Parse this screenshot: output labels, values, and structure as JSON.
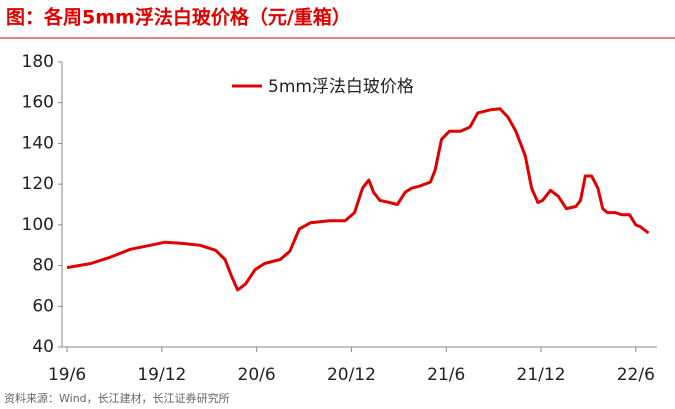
{
  "chart_data": {
    "type": "line",
    "title": "图：各周5mm浮法白玻价格（元/重箱）",
    "source": "资料来源：Wind，长江建材，长江证券研究所",
    "series": [
      {
        "name": "5mm浮法白玻价格",
        "color": "#e00000",
        "x": [
          0,
          1.5,
          2.7,
          4.0,
          5.3,
          6.2,
          7.2,
          8.4,
          9.4,
          10.0,
          10.4,
          10.8,
          11.3,
          11.9,
          12.5,
          13.5,
          14.1,
          14.7,
          15.4,
          16.6,
          17.6,
          18.2,
          18.7,
          19.1,
          19.4,
          19.8,
          20.4,
          20.9,
          21.4,
          21.8,
          22.3,
          23.0,
          23.3,
          23.7,
          24.2,
          24.9,
          25.5,
          26.0,
          26.8,
          27.4,
          27.9,
          28.4,
          29.0,
          29.4,
          29.8,
          30.1,
          30.6,
          31.1,
          31.6,
          32.2,
          32.5,
          32.8,
          33.2,
          33.6,
          33.9,
          34.2,
          34.7,
          35.1,
          35.6,
          36.0,
          36.3,
          36.8
        ],
        "values": [
          79,
          81,
          84,
          88,
          90,
          91.5,
          91,
          90,
          87.5,
          83,
          75,
          68,
          71,
          78,
          81,
          83,
          87,
          98,
          101,
          102,
          102,
          106,
          118,
          122,
          116,
          112,
          111,
          110,
          116,
          118,
          119,
          121,
          127,
          142,
          146,
          146,
          148,
          155,
          156.5,
          157,
          153,
          146,
          134,
          118,
          111,
          112,
          117,
          114,
          108,
          109,
          112,
          124,
          124,
          118,
          108,
          106,
          106,
          105,
          105,
          100,
          99,
          96
        ]
      }
    ],
    "xlim": [
      -0.32,
      37.34
    ],
    "xticks": [
      {
        "value": 0,
        "label": "19/6"
      },
      {
        "value": 6,
        "label": "19/12"
      },
      {
        "value": 12,
        "label": "20/6"
      },
      {
        "value": 18,
        "label": "20/12"
      },
      {
        "value": 24,
        "label": "21/6"
      },
      {
        "value": 30,
        "label": "21/12"
      },
      {
        "value": 36,
        "label": "22/6"
      }
    ],
    "ylim": [
      40,
      180
    ],
    "yticks": [
      40,
      60,
      80,
      100,
      120,
      140,
      160,
      180
    ]
  }
}
